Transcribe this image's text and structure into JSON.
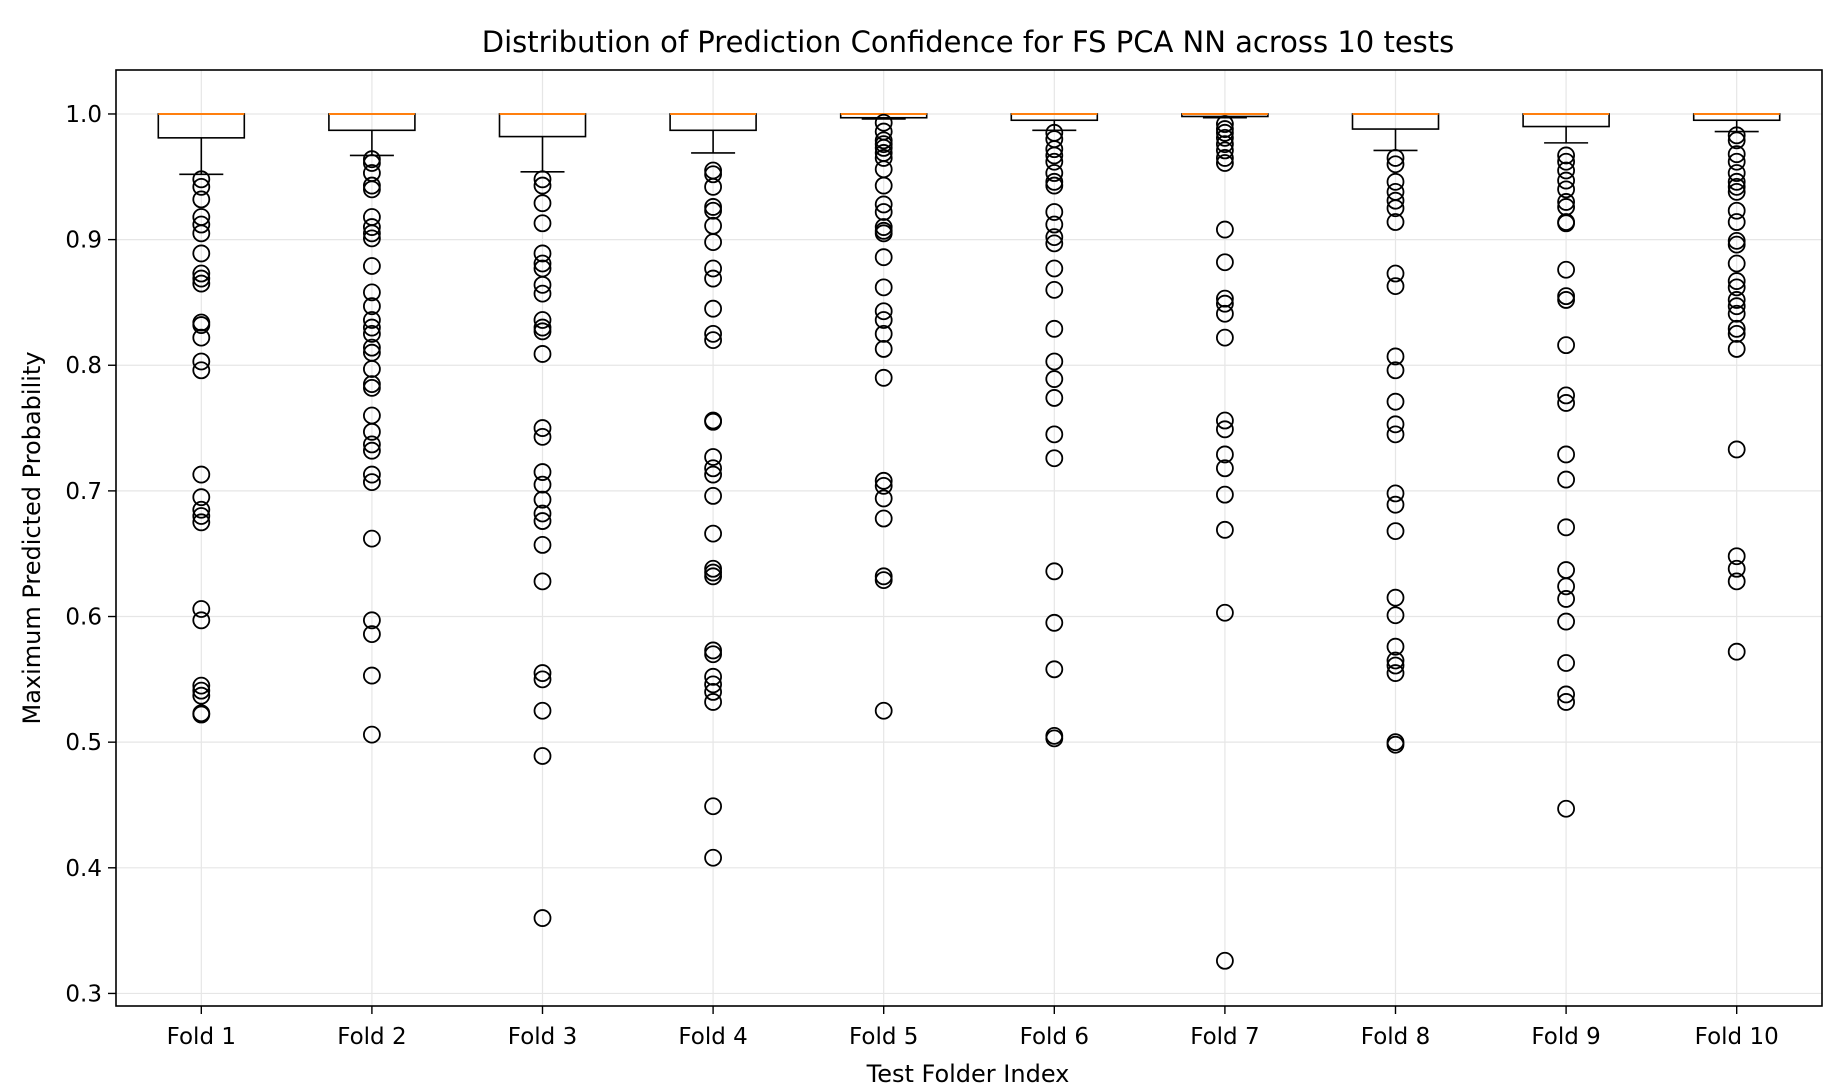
{
  "chart_data": {
    "type": "box",
    "title": "Distribution of Prediction Confidence for FS PCA NN across 10 tests",
    "xlabel": "Test Folder Index",
    "ylabel": "Maximum Predicted Probability",
    "ylim": [
      0.29,
      1.035
    ],
    "yticks": [
      "0.3",
      "0.4",
      "0.5",
      "0.6",
      "0.7",
      "0.8",
      "0.9",
      "1.0"
    ],
    "grid": true,
    "colors": {
      "median": "#ff7f0e",
      "box": "#000000",
      "grid": "#e6e6e6"
    },
    "categories": [
      "Fold 1",
      "Fold 2",
      "Fold 3",
      "Fold 4",
      "Fold 5",
      "Fold 6",
      "Fold 7",
      "Fold 8",
      "Fold 9",
      "Fold 10"
    ],
    "boxes": [
      {
        "median": 1.0,
        "q1": 0.981,
        "q3": 1.0,
        "whisker_low": 0.952,
        "whisker_high": 1.0,
        "outliers": [
          0.948,
          0.942,
          0.932,
          0.918,
          0.912,
          0.905,
          0.889,
          0.873,
          0.869,
          0.865,
          0.834,
          0.832,
          0.822,
          0.803,
          0.796,
          0.713,
          0.695,
          0.685,
          0.68,
          0.675,
          0.606,
          0.597,
          0.545,
          0.541,
          0.537,
          0.523,
          0.522
        ]
      },
      {
        "median": 1.0,
        "q1": 0.987,
        "q3": 1.0,
        "whisker_low": 0.967,
        "whisker_high": 1.0,
        "outliers": [
          0.964,
          0.961,
          0.953,
          0.943,
          0.94,
          0.918,
          0.91,
          0.905,
          0.901,
          0.879,
          0.858,
          0.847,
          0.836,
          0.83,
          0.825,
          0.814,
          0.81,
          0.797,
          0.785,
          0.782,
          0.76,
          0.747,
          0.737,
          0.732,
          0.713,
          0.707,
          0.662,
          0.597,
          0.586,
          0.553,
          0.506
        ]
      },
      {
        "median": 1.0,
        "q1": 0.982,
        "q3": 1.0,
        "whisker_low": 0.954,
        "whisker_high": 1.0,
        "outliers": [
          0.948,
          0.943,
          0.929,
          0.913,
          0.889,
          0.881,
          0.877,
          0.864,
          0.857,
          0.836,
          0.83,
          0.827,
          0.809,
          0.75,
          0.743,
          0.715,
          0.705,
          0.693,
          0.682,
          0.676,
          0.657,
          0.628,
          0.555,
          0.55,
          0.525,
          0.489,
          0.36
        ]
      },
      {
        "median": 1.0,
        "q1": 0.987,
        "q3": 1.0,
        "whisker_low": 0.969,
        "whisker_high": 1.0,
        "outliers": [
          0.955,
          0.952,
          0.942,
          0.926,
          0.923,
          0.911,
          0.898,
          0.877,
          0.869,
          0.845,
          0.825,
          0.82,
          0.756,
          0.755,
          0.727,
          0.718,
          0.713,
          0.696,
          0.666,
          0.638,
          0.635,
          0.632,
          0.573,
          0.57,
          0.552,
          0.546,
          0.54,
          0.532,
          0.449,
          0.408
        ]
      },
      {
        "median": 1.0,
        "q1": 0.997,
        "q3": 1.0,
        "whisker_low": 0.996,
        "whisker_high": 1.0,
        "outliers": [
          0.993,
          0.986,
          0.979,
          0.976,
          0.973,
          0.969,
          0.965,
          0.956,
          0.943,
          0.928,
          0.922,
          0.91,
          0.907,
          0.905,
          0.886,
          0.862,
          0.843,
          0.836,
          0.825,
          0.813,
          0.79,
          0.708,
          0.704,
          0.694,
          0.678,
          0.632,
          0.629,
          0.525
        ]
      },
      {
        "median": 1.0,
        "q1": 0.995,
        "q3": 1.0,
        "whisker_low": 0.987,
        "whisker_high": 1.0,
        "outliers": [
          0.985,
          0.98,
          0.972,
          0.967,
          0.962,
          0.953,
          0.946,
          0.943,
          0.922,
          0.912,
          0.902,
          0.897,
          0.877,
          0.86,
          0.829,
          0.803,
          0.789,
          0.774,
          0.745,
          0.726,
          0.636,
          0.595,
          0.558,
          0.505,
          0.503
        ]
      },
      {
        "median": 1.0,
        "q1": 0.998,
        "q3": 1.0,
        "whisker_low": 0.997,
        "whisker_high": 1.0,
        "outliers": [
          0.992,
          0.988,
          0.985,
          0.981,
          0.976,
          0.971,
          0.965,
          0.961,
          0.908,
          0.882,
          0.853,
          0.849,
          0.841,
          0.822,
          0.756,
          0.749,
          0.729,
          0.718,
          0.697,
          0.669,
          0.603,
          0.326
        ]
      },
      {
        "median": 1.0,
        "q1": 0.988,
        "q3": 1.0,
        "whisker_low": 0.971,
        "whisker_high": 1.0,
        "outliers": [
          0.965,
          0.96,
          0.946,
          0.938,
          0.931,
          0.925,
          0.914,
          0.873,
          0.863,
          0.807,
          0.796,
          0.771,
          0.753,
          0.745,
          0.698,
          0.689,
          0.668,
          0.615,
          0.601,
          0.576,
          0.565,
          0.561,
          0.555,
          0.5,
          0.498
        ]
      },
      {
        "median": 1.0,
        "q1": 0.99,
        "q3": 1.0,
        "whisker_low": 0.977,
        "whisker_high": 1.0,
        "outliers": [
          0.967,
          0.962,
          0.955,
          0.947,
          0.94,
          0.93,
          0.926,
          0.914,
          0.913,
          0.876,
          0.855,
          0.852,
          0.816,
          0.776,
          0.77,
          0.729,
          0.709,
          0.671,
          0.637,
          0.624,
          0.614,
          0.596,
          0.563,
          0.538,
          0.532,
          0.447
        ]
      },
      {
        "median": 1.0,
        "q1": 0.995,
        "q3": 1.0,
        "whisker_low": 0.986,
        "whisker_high": 1.0,
        "outliers": [
          0.983,
          0.979,
          0.968,
          0.962,
          0.953,
          0.946,
          0.942,
          0.938,
          0.923,
          0.914,
          0.899,
          0.896,
          0.881,
          0.867,
          0.862,
          0.852,
          0.847,
          0.841,
          0.829,
          0.825,
          0.813,
          0.733,
          0.648,
          0.638,
          0.628,
          0.572
        ]
      }
    ]
  }
}
